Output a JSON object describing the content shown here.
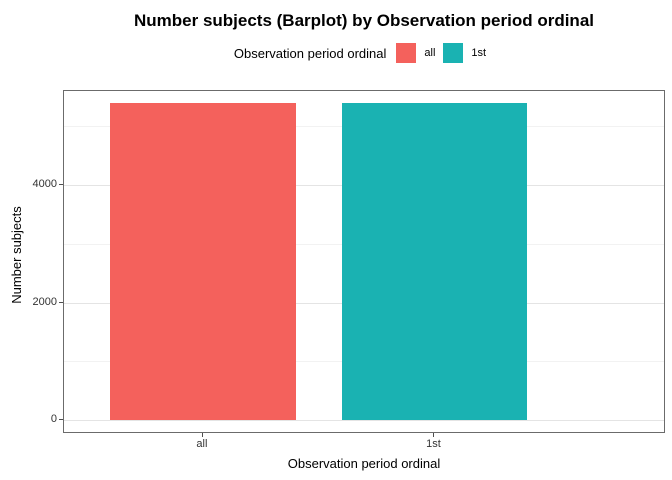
{
  "chart_data": {
    "type": "bar",
    "title": "Number subjects (Barplot) by Observation period ordinal",
    "legend_title": "Observation period ordinal",
    "legend_position": "top",
    "categories": [
      "all",
      "1st"
    ],
    "values": [
      5390,
      5390
    ],
    "colors": [
      "#F4615C",
      "#1AB2B2"
    ],
    "xlabel": "Observation period ordinal",
    "ylabel": "Number subjects",
    "ylim": [
      0,
      5600
    ],
    "yticks": [
      0,
      2000,
      4000
    ],
    "yticks_minor": [
      1000,
      3000,
      5000
    ],
    "grid": "horizontal major and minor",
    "panel_border_color": "#6b6b6b",
    "background": "#ffffff"
  }
}
